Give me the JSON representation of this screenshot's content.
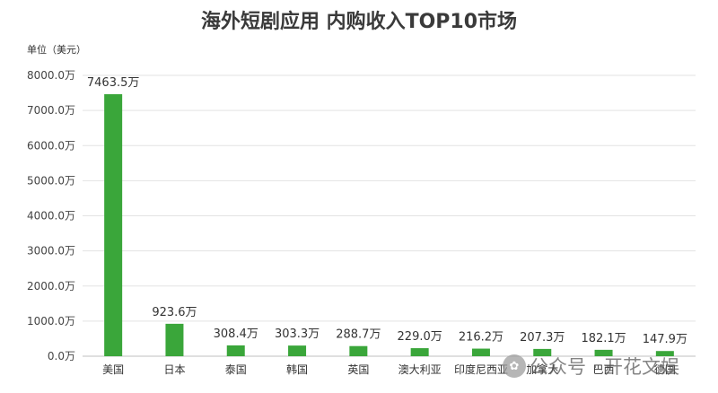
{
  "chart_data": {
    "type": "bar",
    "title": "海外短剧应用 内购收入TOP10市场",
    "ylabel": "单位（美元）",
    "ylim": [
      0,
      8000
    ],
    "yticks": [
      0,
      1000,
      2000,
      3000,
      4000,
      5000,
      6000,
      7000,
      8000
    ],
    "ytick_labels": [
      "0.0万",
      "1000.0万",
      "2000.0万",
      "3000.0万",
      "4000.0万",
      "5000.0万",
      "6000.0万",
      "7000.0万",
      "8000.0万"
    ],
    "categories": [
      "美国",
      "日本",
      "泰国",
      "韩国",
      "英国",
      "澳大利亚",
      "印度尼西亚",
      "加拿大",
      "巴西",
      "德国"
    ],
    "values": [
      7463.5,
      923.6,
      308.4,
      303.3,
      288.7,
      229.0,
      216.2,
      207.3,
      182.1,
      147.9
    ],
    "data_labels": [
      "7463.5万",
      "923.6万",
      "308.4万",
      "303.3万",
      "288.7万",
      "229.0万",
      "216.2万",
      "207.3万",
      "182.1万",
      "147.9万"
    ],
    "grid": true,
    "legend": "none",
    "bar_color": "#3aa63a"
  },
  "watermark": {
    "icon": "wechat-icon",
    "text": "公众号 · 开花文娱"
  }
}
